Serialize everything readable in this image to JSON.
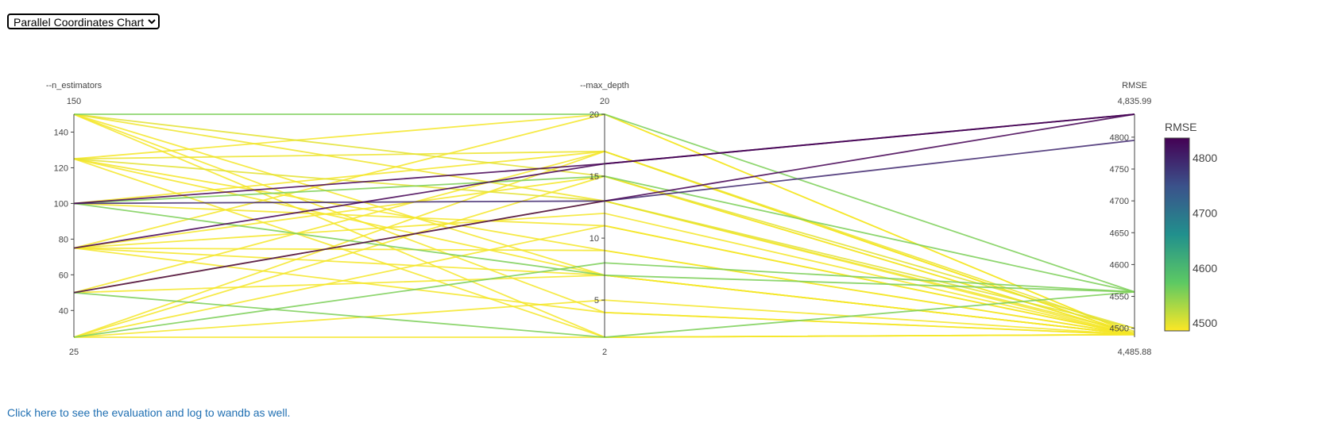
{
  "selector": {
    "selected": "Parallel Coordinates Chart",
    "options": [
      "Parallel Coordinates Chart"
    ]
  },
  "footer": {
    "link_text": "Click here to see the evaluation and log to wandb as well."
  },
  "colors": {
    "axis": "#444444",
    "colorscale": [
      "#440154",
      "#3b528b",
      "#21908d",
      "#5dc963",
      "#fde725"
    ]
  },
  "chart_data": {
    "type": "parallel_coordinates",
    "title": "",
    "dimensions": [
      {
        "label": "--n_estimators",
        "range": [
          25,
          150
        ],
        "range_labels": [
          "25",
          "150"
        ],
        "ticks": [
          40,
          60,
          80,
          100,
          120,
          140
        ],
        "tick_labels": [
          "40",
          "60",
          "80",
          "100",
          "120",
          "140"
        ]
      },
      {
        "label": "--max_depth",
        "range": [
          2,
          20
        ],
        "range_labels": [
          "2",
          "20"
        ],
        "ticks": [
          5,
          10,
          15,
          20
        ],
        "tick_labels": [
          "5",
          "10",
          "15",
          "20"
        ]
      },
      {
        "label": "RMSE",
        "range": [
          4485.88,
          4835.99
        ],
        "range_labels": [
          "4,485.88",
          "4,835.99"
        ],
        "ticks": [
          4500,
          4550,
          4600,
          4650,
          4700,
          4750,
          4800
        ],
        "tick_labels": [
          "4500",
          "4550",
          "4600",
          "4650",
          "4700",
          "4750",
          "4800"
        ]
      }
    ],
    "colorbar": {
      "title": "RMSE",
      "range": [
        4485.88,
        4835.99
      ],
      "ticks": [
        4500,
        4600,
        4700,
        4800
      ],
      "tick_labels": [
        "4500",
        "4600",
        "4700",
        "4800"
      ]
    },
    "lines": [
      [
        150,
        20,
        4557
      ],
      [
        150,
        15,
        4500
      ],
      [
        150,
        13,
        4493
      ],
      [
        150,
        7,
        4490
      ],
      [
        150,
        4,
        4490
      ],
      [
        150,
        2,
        4490
      ],
      [
        125,
        20,
        4490
      ],
      [
        125,
        17,
        4495
      ],
      [
        125,
        13,
        4500
      ],
      [
        125,
        9,
        4490
      ],
      [
        125,
        7,
        4490
      ],
      [
        125,
        2,
        4490
      ],
      [
        100,
        16,
        4836
      ],
      [
        100,
        15,
        4557
      ],
      [
        100,
        13,
        4795
      ],
      [
        100,
        11,
        4490
      ],
      [
        100,
        7,
        4557
      ],
      [
        100,
        17,
        4490
      ],
      [
        75,
        16,
        4836
      ],
      [
        75,
        20,
        4490
      ],
      [
        75,
        15,
        4490
      ],
      [
        75,
        12,
        4490
      ],
      [
        75,
        9,
        4490
      ],
      [
        75,
        7,
        4490
      ],
      [
        75,
        4,
        4490
      ],
      [
        50,
        13,
        4836
      ],
      [
        50,
        17,
        4490
      ],
      [
        50,
        13,
        4490
      ],
      [
        50,
        7,
        4490
      ],
      [
        50,
        2,
        4557
      ],
      [
        25,
        8,
        4557
      ],
      [
        25,
        17,
        4490
      ],
      [
        25,
        15,
        4490
      ],
      [
        25,
        11,
        4490
      ],
      [
        25,
        5,
        4490
      ],
      [
        25,
        2,
        4490
      ]
    ]
  }
}
